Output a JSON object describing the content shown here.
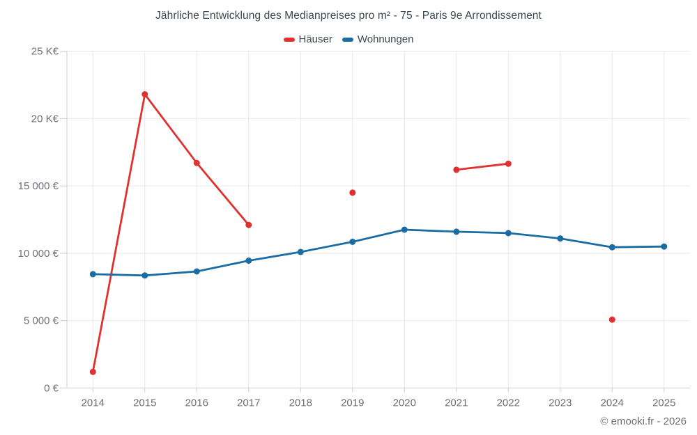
{
  "title": "Jährliche Entwicklung des Medianpreises pro m² - 75 - Paris 9e Arrondissement",
  "footer": "© emooki.fr - 2026",
  "colors": {
    "haeuser": "#e03131",
    "wohnungen": "#1a6da3",
    "grid": "#e7e7e7",
    "axis": "#cccccc",
    "tick_label": "#6b7076",
    "title_text": "#3d454d"
  },
  "chart_data": {
    "type": "line",
    "title": "Jährliche Entwicklung des Medianpreises pro m² - 75 - Paris 9e Arrondissement",
    "categories": [
      "2014",
      "2015",
      "2016",
      "2017",
      "2018",
      "2019",
      "2020",
      "2021",
      "2022",
      "2023",
      "2024",
      "2025"
    ],
    "series": [
      {
        "name": "Häuser",
        "color": "#e03131",
        "values": [
          1200,
          21800,
          16700,
          12100,
          null,
          14500,
          null,
          16200,
          16650,
          null,
          5080,
          null
        ]
      },
      {
        "name": "Wohnungen",
        "color": "#1a6da3",
        "values": [
          8450,
          8350,
          8650,
          9450,
          10100,
          10850,
          11750,
          11600,
          11500,
          11100,
          10450,
          10500
        ]
      }
    ],
    "xlabel": "",
    "ylabel": "",
    "ylim": [
      0,
      25000
    ],
    "y_ticks": [
      {
        "value": 0,
        "label": "0 €"
      },
      {
        "value": 5000,
        "label": "5 000 €"
      },
      {
        "value": 10000,
        "label": "10 000 €"
      },
      {
        "value": 15000,
        "label": "15 000 €"
      },
      {
        "value": 20000,
        "label": "20 K€"
      },
      {
        "value": 25000,
        "label": "25 K€"
      }
    ],
    "grid": true,
    "legend_position": "top"
  }
}
